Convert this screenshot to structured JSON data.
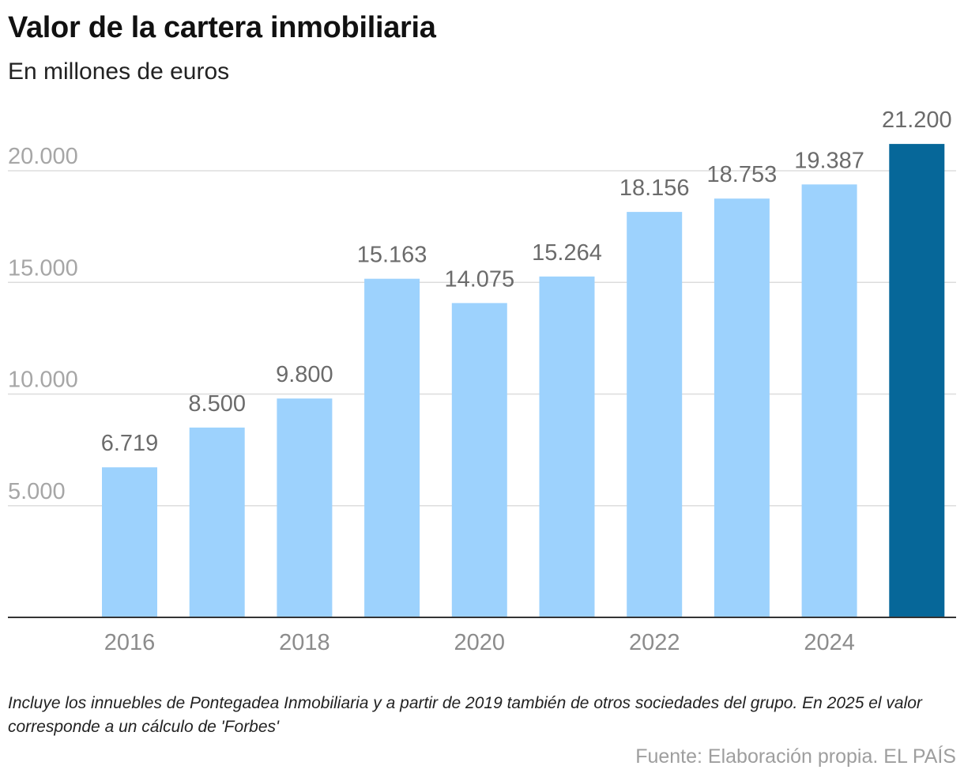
{
  "chart_data": {
    "type": "bar",
    "title": "Valor de la cartera inmobiliaria",
    "subtitle": "En millones de euros",
    "categories": [
      "2016",
      "2017",
      "2018",
      "2019",
      "2020",
      "2021",
      "2022",
      "2023",
      "2024",
      "2025"
    ],
    "values": [
      6719,
      8500,
      9800,
      15163,
      14075,
      15264,
      18156,
      18753,
      19387,
      21200
    ],
    "value_labels": [
      "6.719",
      "8.500",
      "9.800",
      "15.163",
      "14.075",
      "15.264",
      "18.156",
      "18.753",
      "19.387",
      "21.200"
    ],
    "x_tick_labels": [
      "2016",
      "",
      "2018",
      "",
      "2020",
      "",
      "2022",
      "",
      "2024",
      ""
    ],
    "y_ticks": [
      5000,
      10000,
      15000,
      20000
    ],
    "y_tick_labels": [
      "5.000",
      "10.000",
      "15.000",
      "20.000"
    ],
    "ylim": [
      0,
      22000
    ],
    "grid": true,
    "colors": {
      "bar": "#9dd2fd",
      "highlight": "#066799",
      "grid": "#dddddd",
      "axis": "#333333"
    },
    "highlight_index": 9
  },
  "footer": {
    "note": "Incluye los innuebles de Pontegadea Inmobiliaria y a partir de 2019 también de otros sociedades del grupo. En 2025 el valor corresponde a un cálculo de 'Forbes'",
    "source": "Fuente: Elaboración propia. EL PAÍS"
  }
}
